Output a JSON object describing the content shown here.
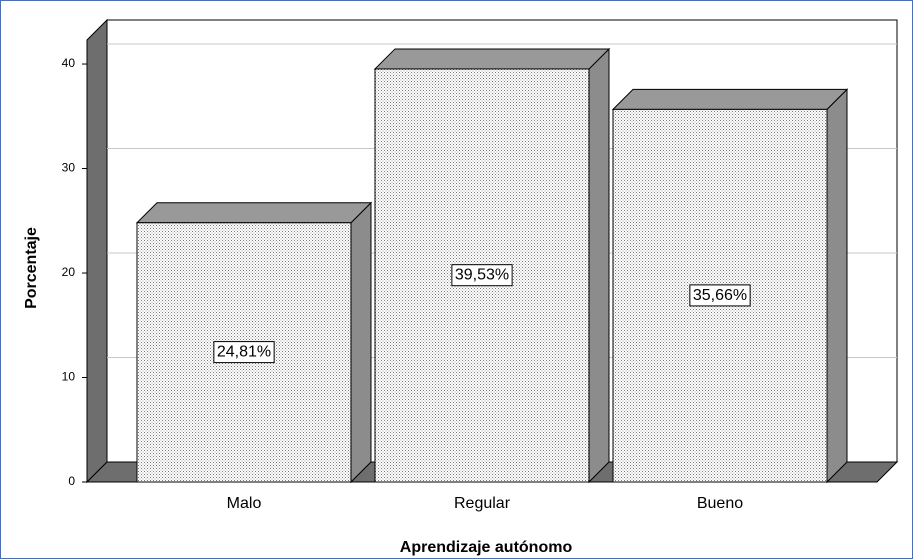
{
  "chart_data": {
    "type": "bar3d",
    "x_label": "Aprendizaje autónomo",
    "y_label": "Porcentaje",
    "categories": [
      "Malo",
      "Regular",
      "Bueno"
    ],
    "values": [
      24.81,
      39.53,
      35.66
    ],
    "value_labels": [
      "24,81%",
      "39,53%",
      "35,66%"
    ],
    "ylim": [
      0,
      42.3
    ],
    "yticks": [
      0,
      10,
      20,
      30,
      40
    ],
    "grid": true,
    "color": "#ffffff",
    "side_color": "#8c8c8c",
    "wall_color": "#6e6e6e"
  }
}
